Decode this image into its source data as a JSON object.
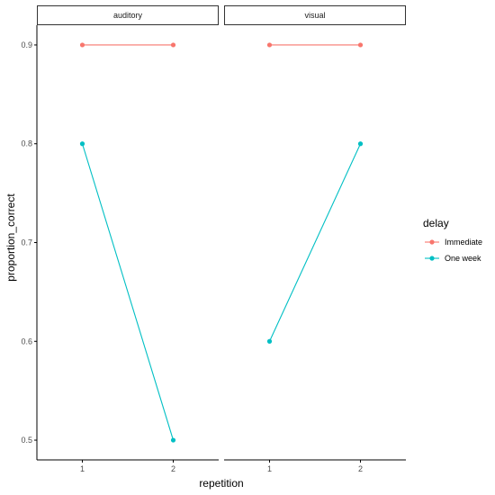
{
  "chart_data": {
    "type": "line",
    "xlabel": "repetition",
    "ylabel": "proportion_correct",
    "x_ticks": [
      1,
      2
    ],
    "y_ticks": [
      0.5,
      0.6,
      0.7,
      0.8,
      0.9
    ],
    "y_tick_labels": [
      "0.5",
      "0.6",
      "0.7",
      "0.8",
      "0.9"
    ],
    "x_tick_labels": [
      "1",
      "2"
    ],
    "xlim": [
      0.5,
      2.5
    ],
    "ylim": [
      0.48,
      0.92
    ],
    "grid": false,
    "legend": {
      "title": "delay",
      "position": "right",
      "items": [
        "Immediate",
        "One week"
      ]
    },
    "colors": {
      "Immediate": "#F8766D",
      "One week": "#00BFC4",
      "strip_fill": "#ffffff",
      "axis": "#000000"
    },
    "facets": [
      {
        "label": "auditory",
        "series": [
          {
            "name": "Immediate",
            "x": [
              1,
              2
            ],
            "y": [
              0.9,
              0.9
            ]
          },
          {
            "name": "One week",
            "x": [
              1,
              2
            ],
            "y": [
              0.8,
              0.5
            ]
          }
        ]
      },
      {
        "label": "visual",
        "series": [
          {
            "name": "Immediate",
            "x": [
              1,
              2
            ],
            "y": [
              0.9,
              0.9
            ]
          },
          {
            "name": "One week",
            "x": [
              1,
              2
            ],
            "y": [
              0.6,
              0.8
            ]
          }
        ]
      }
    ]
  }
}
